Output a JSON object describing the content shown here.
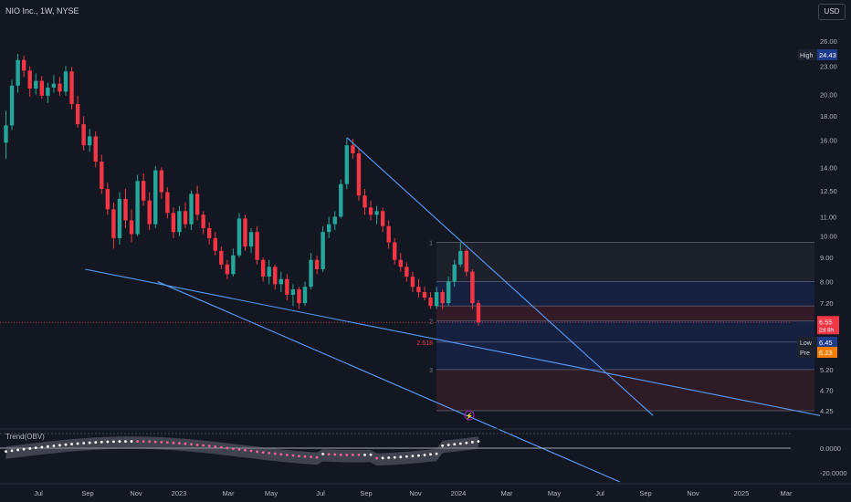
{
  "symbol_title": "NIO Inc., 1W, NYSE",
  "currency_button": "USD",
  "indicator_label": "Trend(OBV)",
  "badges": {
    "high_label": "High",
    "high_value": "24.43",
    "last_value": "6.55",
    "last_countdown": "2d 8h",
    "low_label": "Low",
    "low_value": "6.45",
    "pre_label": "Pre",
    "pre_value": "6.23"
  },
  "fib_labels": [
    "1",
    "2",
    "2.618",
    "3"
  ],
  "colors": {
    "up": "#26a69a",
    "down": "#f23645",
    "trend": "#5b9cf6",
    "bg": "#131722"
  },
  "chart_data": {
    "type": "candlestick",
    "title": "NIO Inc., 1W, NYSE",
    "y_axis_scale": "log",
    "y_ticks": [
      "26.00",
      "23.00",
      "20.00",
      "18.00",
      "16.00",
      "14.00",
      "12.50",
      "11.00",
      "10.00",
      "9.00",
      "8.00",
      "7.20",
      "5.20",
      "4.70",
      "4.25"
    ],
    "x_ticks": [
      "Jul",
      "Sep",
      "Nov",
      "2023",
      "Mar",
      "May",
      "Jul",
      "Sep",
      "Nov",
      "2024",
      "Mar",
      "May",
      "Jul",
      "Sep",
      "Nov",
      "2025",
      "Mar"
    ],
    "osc_ticks": [
      "0.0000",
      "-20.0000"
    ],
    "series": [
      {
        "name": "NIO Inc.",
        "ohlc_series": [
          [
            15.8,
            18.5,
            14.6,
            17.2
          ],
          [
            17.2,
            21.5,
            16.8,
            20.9
          ],
          [
            20.9,
            24.43,
            20.2,
            23.7
          ],
          [
            23.7,
            24.2,
            21.8,
            22.5
          ],
          [
            22.5,
            23.0,
            19.8,
            20.6
          ],
          [
            20.6,
            22.2,
            20.0,
            21.4
          ],
          [
            21.4,
            21.9,
            19.6,
            19.9
          ],
          [
            19.9,
            21.2,
            19.2,
            20.7
          ],
          [
            20.7,
            22.0,
            20.2,
            21.1
          ],
          [
            21.1,
            21.8,
            19.9,
            20.3
          ],
          [
            20.3,
            23.0,
            19.9,
            22.4
          ],
          [
            22.4,
            22.9,
            18.6,
            19.1
          ],
          [
            19.1,
            19.9,
            17.0,
            17.3
          ],
          [
            17.3,
            18.0,
            15.2,
            15.6
          ],
          [
            15.6,
            16.9,
            15.1,
            16.3
          ],
          [
            16.3,
            16.7,
            14.0,
            14.4
          ],
          [
            14.4,
            14.9,
            12.3,
            12.6
          ],
          [
            12.6,
            13.0,
            11.1,
            11.4
          ],
          [
            11.4,
            11.8,
            9.4,
            9.9
          ],
          [
            9.9,
            12.4,
            9.6,
            12.0
          ],
          [
            12.0,
            12.6,
            10.4,
            10.8
          ],
          [
            10.8,
            11.4,
            9.7,
            10.1
          ],
          [
            10.1,
            13.5,
            10.0,
            13.1
          ],
          [
            13.1,
            13.6,
            11.6,
            11.9
          ],
          [
            11.9,
            12.4,
            10.3,
            10.6
          ],
          [
            10.6,
            14.1,
            10.4,
            13.8
          ],
          [
            13.8,
            14.0,
            12.0,
            12.4
          ],
          [
            12.4,
            12.7,
            10.9,
            11.2
          ],
          [
            11.2,
            11.5,
            9.9,
            10.2
          ],
          [
            10.2,
            11.6,
            10.0,
            11.3
          ],
          [
            11.3,
            11.8,
            10.4,
            10.6
          ],
          [
            10.6,
            12.5,
            10.3,
            12.3
          ],
          [
            12.3,
            12.8,
            10.8,
            11.1
          ],
          [
            11.1,
            11.3,
            10.1,
            10.4
          ],
          [
            10.4,
            10.7,
            9.6,
            9.9
          ],
          [
            9.9,
            10.2,
            9.1,
            9.3
          ],
          [
            9.3,
            9.5,
            8.5,
            8.7
          ],
          [
            8.7,
            8.9,
            8.1,
            8.3
          ],
          [
            8.3,
            9.4,
            8.2,
            9.1
          ],
          [
            9.1,
            11.2,
            9.0,
            10.9
          ],
          [
            10.9,
            11.1,
            9.3,
            9.5
          ],
          [
            9.5,
            10.4,
            9.2,
            10.2
          ],
          [
            10.2,
            10.5,
            8.7,
            8.9
          ],
          [
            8.9,
            9.0,
            8.0,
            8.2
          ],
          [
            8.2,
            8.9,
            7.9,
            8.6
          ],
          [
            8.6,
            8.7,
            7.7,
            7.9
          ],
          [
            7.9,
            8.4,
            7.6,
            8.1
          ],
          [
            8.1,
            8.3,
            7.3,
            7.5
          ],
          [
            7.5,
            7.9,
            7.1,
            7.7
          ],
          [
            7.7,
            7.8,
            7.0,
            7.2
          ],
          [
            7.2,
            8.0,
            7.1,
            7.8
          ],
          [
            7.8,
            9.2,
            7.7,
            8.9
          ],
          [
            8.9,
            9.1,
            8.3,
            8.5
          ],
          [
            8.5,
            10.5,
            8.4,
            10.2
          ],
          [
            10.2,
            11.0,
            9.9,
            10.6
          ],
          [
            10.6,
            11.3,
            10.3,
            11.0
          ],
          [
            11.0,
            13.2,
            10.9,
            12.9
          ],
          [
            12.9,
            16.2,
            12.6,
            15.6
          ],
          [
            15.6,
            16.1,
            14.6,
            15.0
          ],
          [
            15.0,
            15.4,
            11.9,
            12.2
          ],
          [
            12.2,
            12.6,
            11.1,
            11.5
          ],
          [
            11.5,
            11.9,
            10.8,
            11.1
          ],
          [
            11.1,
            11.6,
            10.6,
            11.3
          ],
          [
            11.3,
            11.5,
            10.2,
            10.5
          ],
          [
            10.5,
            10.8,
            9.4,
            9.7
          ],
          [
            9.7,
            9.9,
            8.7,
            8.9
          ],
          [
            8.9,
            9.2,
            8.4,
            8.6
          ],
          [
            8.6,
            8.8,
            8.0,
            8.2
          ],
          [
            8.2,
            8.4,
            7.6,
            7.8
          ],
          [
            7.8,
            8.1,
            7.4,
            7.6
          ],
          [
            7.6,
            7.8,
            7.3,
            7.4
          ],
          [
            7.4,
            7.6,
            7.0,
            7.1
          ],
          [
            7.1,
            7.8,
            7.0,
            7.6
          ],
          [
            7.6,
            7.7,
            7.0,
            7.2
          ],
          [
            7.2,
            8.2,
            7.1,
            8.0
          ],
          [
            8.0,
            8.9,
            7.8,
            8.7
          ],
          [
            8.7,
            9.7,
            8.6,
            9.3
          ],
          [
            9.3,
            9.4,
            8.2,
            8.4
          ],
          [
            8.4,
            8.5,
            7.0,
            7.2
          ],
          [
            7.2,
            7.3,
            6.45,
            6.55
          ]
        ]
      }
    ],
    "trend_lines": [
      {
        "from": [
          "2022-08-29",
          8.5
        ],
        "to": [
          "2025-03-10",
          4.15
        ]
      },
      {
        "from": [
          "2022-11-28",
          8.0
        ],
        "to": [
          "2024-07-01",
          3.0
        ]
      },
      {
        "from": [
          "2023-07-24",
          16.2
        ],
        "to": [
          "2024-08-12",
          4.15
        ]
      }
    ],
    "fib_levels": [
      {
        "label": "1",
        "value": 9.7
      },
      {
        "label": "",
        "value": 8.0
      },
      {
        "label": "",
        "value": 7.1
      },
      {
        "label": "2",
        "value": 6.6
      },
      {
        "label": "2.618",
        "value": 5.95
      },
      {
        "label": "3",
        "value": 5.2
      },
      {
        "label": "",
        "value": 4.25
      }
    ],
    "price_line": 6.55,
    "oscillator": {
      "name": "Trend(OBV)",
      "range": [
        -20,
        8
      ]
    }
  }
}
